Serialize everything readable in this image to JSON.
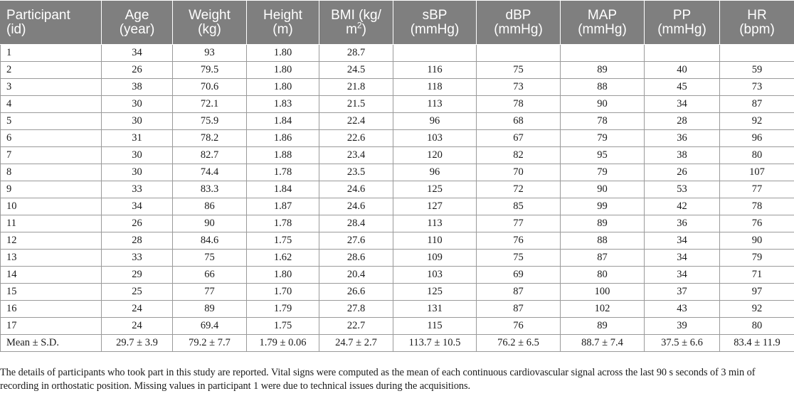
{
  "table": {
    "headers": [
      {
        "line1": "Participant",
        "line2": "(id)"
      },
      {
        "line1": "Age",
        "line2": "(year)"
      },
      {
        "line1": "Weight",
        "line2": "(kg)"
      },
      {
        "line1": "Height",
        "line2": "(m)"
      },
      {
        "line1": "BMI (kg/",
        "line2": "m",
        "sup": "2",
        "line2_end": ")"
      },
      {
        "line1": "sBP",
        "line2": "(mmHg)"
      },
      {
        "line1": "dBP",
        "line2": "(mmHg)"
      },
      {
        "line1": "MAP",
        "line2": "(mmHg)"
      },
      {
        "line1": "PP",
        "line2": "(mmHg)"
      },
      {
        "line1": "HR",
        "line2": "(bpm)"
      }
    ],
    "rows": [
      [
        "1",
        "34",
        "93",
        "1.80",
        "28.7",
        "",
        "",
        "",
        "",
        ""
      ],
      [
        "2",
        "26",
        "79.5",
        "1.80",
        "24.5",
        "116",
        "75",
        "89",
        "40",
        "59"
      ],
      [
        "3",
        "38",
        "70.6",
        "1.80",
        "21.8",
        "118",
        "73",
        "88",
        "45",
        "73"
      ],
      [
        "4",
        "30",
        "72.1",
        "1.83",
        "21.5",
        "113",
        "78",
        "90",
        "34",
        "87"
      ],
      [
        "5",
        "30",
        "75.9",
        "1.84",
        "22.4",
        "96",
        "68",
        "78",
        "28",
        "92"
      ],
      [
        "6",
        "31",
        "78.2",
        "1.86",
        "22.6",
        "103",
        "67",
        "79",
        "36",
        "96"
      ],
      [
        "7",
        "30",
        "82.7",
        "1.88",
        "23.4",
        "120",
        "82",
        "95",
        "38",
        "80"
      ],
      [
        "8",
        "30",
        "74.4",
        "1.78",
        "23.5",
        "96",
        "70",
        "79",
        "26",
        "107"
      ],
      [
        "9",
        "33",
        "83.3",
        "1.84",
        "24.6",
        "125",
        "72",
        "90",
        "53",
        "77"
      ],
      [
        "10",
        "34",
        "86",
        "1.87",
        "24.6",
        "127",
        "85",
        "99",
        "42",
        "78"
      ],
      [
        "11",
        "26",
        "90",
        "1.78",
        "28.4",
        "113",
        "77",
        "89",
        "36",
        "76"
      ],
      [
        "12",
        "28",
        "84.6",
        "1.75",
        "27.6",
        "110",
        "76",
        "88",
        "34",
        "90"
      ],
      [
        "13",
        "33",
        "75",
        "1.62",
        "28.6",
        "109",
        "75",
        "87",
        "34",
        "79"
      ],
      [
        "14",
        "29",
        "66",
        "1.80",
        "20.4",
        "103",
        "69",
        "80",
        "34",
        "71"
      ],
      [
        "15",
        "25",
        "77",
        "1.70",
        "26.6",
        "125",
        "87",
        "100",
        "37",
        "97"
      ],
      [
        "16",
        "24",
        "89",
        "1.79",
        "27.8",
        "131",
        "87",
        "102",
        "43",
        "92"
      ],
      [
        "17",
        "24",
        "69.4",
        "1.75",
        "22.7",
        "115",
        "76",
        "89",
        "39",
        "80"
      ],
      [
        "Mean ± S.D.",
        "29.7 ± 3.9",
        "79.2 ± 7.7",
        "1.79 ± 0.06",
        "24.7 ± 2.7",
        "113.7 ± 10.5",
        "76.2 ± 6.5",
        "88.7 ± 7.4",
        "37.5 ± 6.6",
        "83.4 ± 11.9"
      ]
    ]
  },
  "footnote": "The details of participants who took part in this study are reported. Vital signs were computed as the mean of each continuous cardiovascular signal across the last 90 s seconds of 3 min of recording in orthostatic position. Missing values in participant 1 were due to technical issues during the acquisitions.",
  "colors": {
    "header_bg": "#7f7f7f",
    "header_text": "#ffffff",
    "grid_line": "#9a9a9a"
  }
}
